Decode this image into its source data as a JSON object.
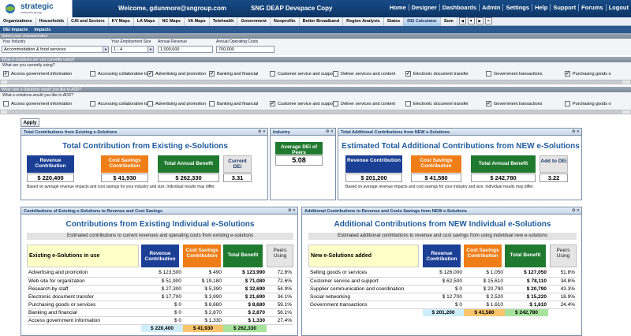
{
  "header": {
    "logo_text": "strategic",
    "logo_sub": "networks group",
    "welcome": "Welcome, gdunmore@sngroup.com",
    "site": "SNG DEAP Devspace Copy",
    "nav": [
      "Home",
      "Designer",
      "Dashboards",
      "Admin",
      "Settings",
      "Help",
      "Support",
      "Forums",
      "Logout"
    ]
  },
  "tabs": [
    "Organizations",
    "Households",
    "CAI and Sectors",
    "KY Maps",
    "LA Maps",
    "NC Maps",
    "VA Maps",
    "Telehealth",
    "Government",
    "Nonprofits",
    "Better Broadband",
    "Region Analysis",
    "States",
    "DEi Calculator",
    "Sum"
  ],
  "active_tab": "DEi Calculator",
  "subtabs": [
    "DEi Impacts",
    "Impacts"
  ],
  "characteristics": {
    "bar": "Select your characteristics",
    "industry_label": "Your Industry",
    "industry_value": "Accommodation & food services",
    "size_label": "Your Employment Size",
    "size_value": "1 - 4",
    "revenue_label": "Annual Revenue",
    "revenue_value": "1,000,000",
    "costs_label": "Annual Operating Costs",
    "costs_value": "700,000"
  },
  "using": {
    "bar": "What e-Solutions are you currently using?",
    "question": "What are you currently using?",
    "items": [
      {
        "label": "Access government information",
        "checked": true
      },
      {
        "label": "Accessing collaborative tools",
        "checked": false
      },
      {
        "label": "Advertising and promotion",
        "checked": true
      },
      {
        "label": "Banking and financial",
        "checked": true
      },
      {
        "label": "Customer service and support",
        "checked": false
      },
      {
        "label": "Deliver services and content",
        "checked": false
      },
      {
        "label": "Electronic document transfer",
        "checked": true
      },
      {
        "label": "Government transactions",
        "checked": false
      },
      {
        "label": "Purchasing goods o",
        "checked": true
      }
    ]
  },
  "adding": {
    "bar": "What new e-Solutions would you like to ADD?",
    "question": "What e-solutions would you like to ADD?",
    "items": [
      {
        "label": "Access government information",
        "checked": false
      },
      {
        "label": "Accessing collaborative tools",
        "checked": false
      },
      {
        "label": "Advertising and promotion",
        "checked": false
      },
      {
        "label": "Banking and financial",
        "checked": false
      },
      {
        "label": "Customer service and support",
        "checked": true
      },
      {
        "label": "Deliver services and content",
        "checked": false
      },
      {
        "label": "Electronic document transfer",
        "checked": false
      },
      {
        "label": "Government transactions",
        "checked": true
      },
      {
        "label": "Purchasing goods o",
        "checked": false
      }
    ]
  },
  "apply_label": "Apply",
  "existing_panel": {
    "head": "Total Contributions from Existing e-Solutions",
    "title": "Total Contribution from Existing e-Solutions",
    "revenue_label": "Revenue Contribution",
    "revenue_value": "$ 220,400",
    "cost_label": "Cost Savings Contribution",
    "cost_value": "$ 41,930",
    "total_label": "Total Annual Benefit",
    "total_value": "$ 262,330",
    "dei_label": "Current DEi",
    "dei_value": "3.31",
    "note": "Based on average revenue impacts and cost savings for your industry and size. Individual results may differ."
  },
  "industry_panel": {
    "head": "Industry",
    "label": "Average DEi of Peers",
    "value": "5.08"
  },
  "new_panel": {
    "head": "Total Additional Contributions from NEW e-Solutions",
    "title": "Estimated Total Additional Contributions from NEW e-Solutions",
    "revenue_label": "Revenue Contribution",
    "revenue_value": "$ 201,200",
    "cost_label": "Cost Savings Contribution",
    "cost_value": "$ 41,580",
    "total_label": "Total Annual Benefit",
    "total_value": "$ 242,780",
    "dei_label": "Add to DEi",
    "dei_value": "3.22",
    "note": "Based on average revenue impacts and cost savings for your industry and size. Individual results may differ."
  },
  "existing_detail": {
    "head": "Contributions of Existing e-Solutions to Revenue and Cost Savings",
    "title": "Contributions from Existing Individual e-Solutions",
    "strip": "Estimated contributions to current revenues and operating costs from existing e-solutions",
    "col0": "Existing e-Solutions in use",
    "col1": "Revenue Contribution",
    "col2": "Cost Savings Contribution",
    "col3": "Total Benefit",
    "col4": "Peers Using",
    "rows": [
      [
        "Advertising and promotion",
        "$ 123,500",
        "$ 490",
        "$ 123,990",
        "72.6%"
      ],
      [
        "Web site for organization",
        "$ 51,900",
        "$ 19,180",
        "$ 71,080",
        "72.6%"
      ],
      [
        "Research by staff",
        "$ 27,300",
        "$ 5,390",
        "$ 32,690",
        "54.9%"
      ],
      [
        "Electronic document transfer",
        "$ 17,700",
        "$ 3,990",
        "$ 21,690",
        "34.1%"
      ],
      [
        "Purchasing goods or services",
        "$ 0",
        "$ 8,680",
        "$ 8,680",
        "59.1%"
      ],
      [
        "Banking and financial",
        "$ 0",
        "$ 2,870",
        "$ 2,870",
        "56.1%"
      ],
      [
        "Access government information",
        "$ 0",
        "$ 1,330",
        "$ 1,330",
        "27.4%"
      ]
    ],
    "totals": [
      "$ 220,400",
      "$ 41,930",
      "$ 262,330"
    ]
  },
  "new_detail": {
    "head": "Additional Contributions to Revenue and Costs Savings from NEW e-Solutions",
    "title": "Additional Contributions from NEW Individual e-Solutions",
    "strip": "Estimated additional contributions to revenue and cost savings from using individual new e-solutions",
    "col0": "New e-Solutions added",
    "col1": "Revenue Contribution",
    "col2": "Cost Savings Contribution",
    "col3": "Total Benefit",
    "col4": "Peers Using",
    "rows": [
      [
        "Selling goods or services",
        "$ 126,000",
        "$ 1,050",
        "$ 127,050",
        "51.8%"
      ],
      [
        "Customer service and support",
        "$ 62,500",
        "$ 15,610",
        "$ 78,110",
        "34.8%"
      ],
      [
        "Supplier communication and coordination",
        "$ 0",
        "$ 20,790",
        "$ 20,790",
        "43.3%"
      ],
      [
        "Social networking",
        "$ 12,700",
        "$ 2,520",
        "$ 15,220",
        "18.9%"
      ],
      [
        "Government transactions",
        "$ 0",
        "$ 1,610",
        "$ 1,610",
        "24.4%"
      ]
    ],
    "totals": [
      "$ 201,200",
      "$ 41,580",
      "$ 242,780"
    ]
  }
}
